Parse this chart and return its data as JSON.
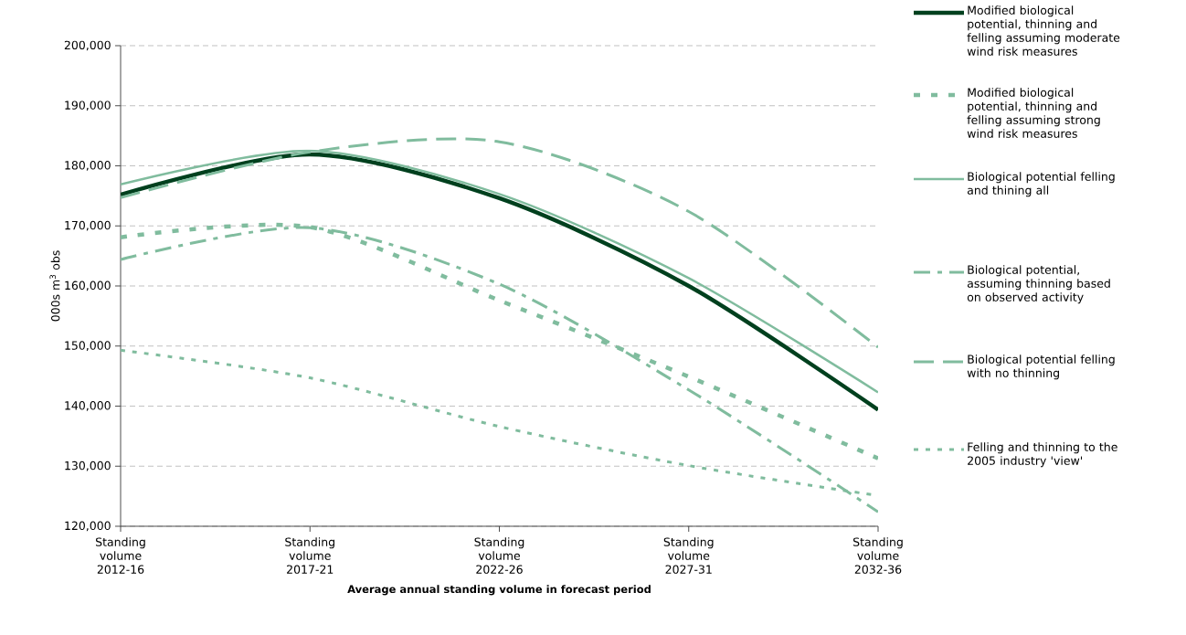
{
  "chart_data": {
    "type": "line",
    "xlabel": "Average annual standing volume in forecast period",
    "ylabel": "000s m$^{3}$ obs",
    "categories": [
      "Standing volume 2012-16",
      "Standing volume 2017-21",
      "Standing volume 2022-26",
      "Standing volume 2027-31",
      "Standing volume 2032-36"
    ],
    "series": [
      {
        "name": "Modified biological potential, thinning and felling assuming moderate wind risk measures",
        "color": "#00401e",
        "line_style": "solid",
        "values": [
          175200,
          181900,
          174600,
          160000,
          139400
        ]
      },
      {
        "name": "Modified biological potential, thinning and felling assuming strong wind risk measures",
        "color": "#80bc9e",
        "line_style": "dashed",
        "values": [
          168100,
          169800,
          157600,
          144900,
          131300
        ]
      },
      {
        "name": "Biological potential felling and thining all",
        "color": "#80bc9e",
        "line_style": "solid",
        "values": [
          176900,
          182500,
          175300,
          161300,
          142300
        ]
      },
      {
        "name": "Biological potential, assuming thinning based on observed activity",
        "color": "#80bc9e",
        "line_style": "dashdot",
        "values": [
          164400,
          169700,
          160300,
          142700,
          122400
        ]
      },
      {
        "name": "Biological potential felling with no thinning",
        "color": "#80bc9e",
        "line_style": "long dashed",
        "values": [
          174700,
          182300,
          184000,
          172400,
          149800
        ]
      },
      {
        "name": "Felling and thinning to the 2005 industry 'view'",
        "color": "#80bc9e",
        "line_style": "dotted",
        "values": [
          149300,
          144700,
          136600,
          130100,
          125100
        ]
      }
    ],
    "ylim": [
      120000,
      200000
    ],
    "yticks": [
      {
        "value": 120000,
        "label": "120,000"
      },
      {
        "value": 130000,
        "label": "130,000"
      },
      {
        "value": 140000,
        "label": "140,000"
      },
      {
        "value": 150000,
        "label": "150,000"
      },
      {
        "value": 160000,
        "label": "160,000"
      },
      {
        "value": 170000,
        "label": "170,000"
      },
      {
        "value": 180000,
        "label": "180,000"
      },
      {
        "value": 190000,
        "label": "190,000"
      },
      {
        "value": 200000,
        "label": "200,000"
      }
    ],
    "grid": "y",
    "legend": "right",
    "marker": "none"
  }
}
